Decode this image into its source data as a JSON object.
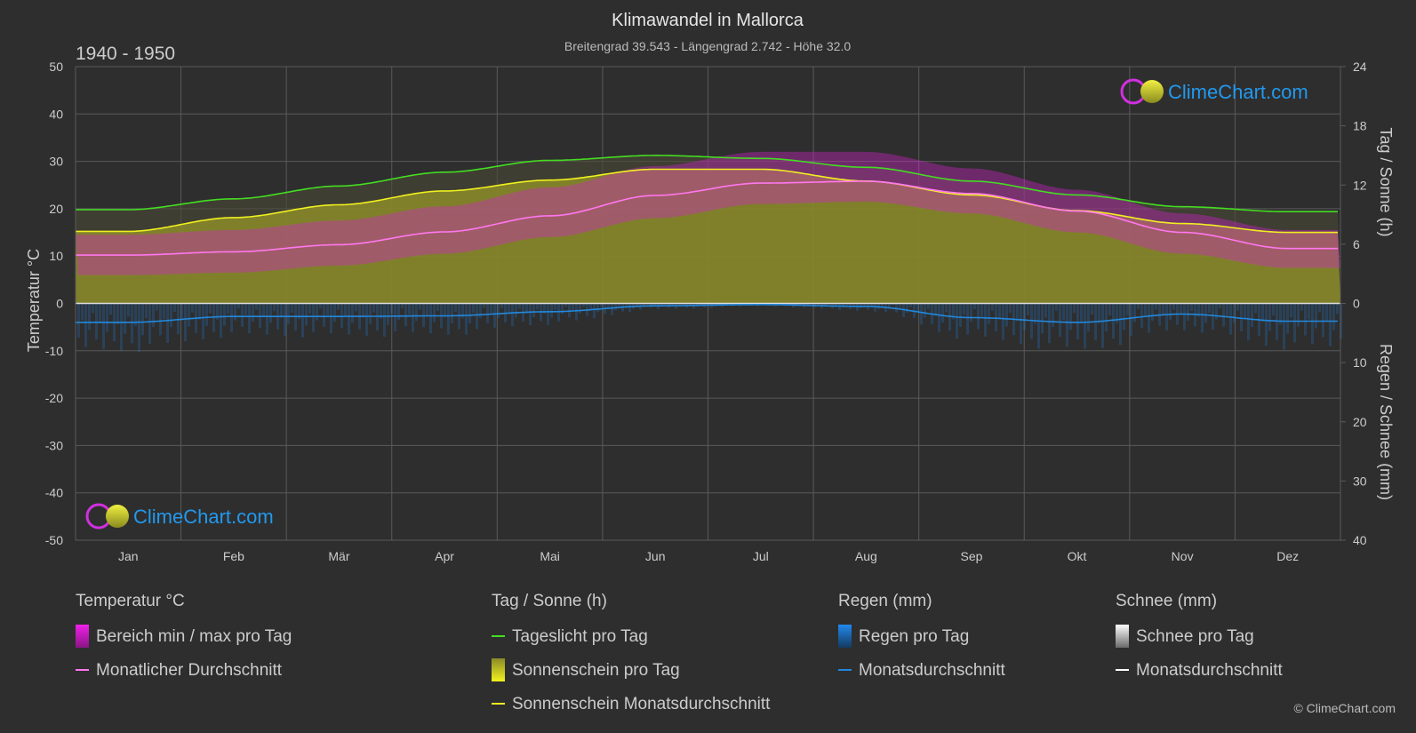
{
  "title": "Klimawandel in Mallorca",
  "subtitle": "Breitengrad 39.543 - Längengrad 2.742 - Höhe 32.0",
  "period": "1940 - 1950",
  "brand": "ClimeChart.com",
  "copyright": "© ClimeChart.com",
  "colors": {
    "background": "#2e2e2e",
    "grid": "#5a5a5a",
    "text": "#cccccc",
    "daylight": "#44dd22",
    "sunshine_fill": "#8c8c2a",
    "sunshine_avg": "#f0f020",
    "temp_range": "#d022c8",
    "temp_avg": "#ff77ee",
    "rain": "#1f78c8",
    "rain_avg": "#2288dd",
    "brand": "#2299ee"
  },
  "chart_data": {
    "type": "line",
    "categories": [
      "Jan",
      "Feb",
      "Mär",
      "Apr",
      "Mai",
      "Jun",
      "Jul",
      "Aug",
      "Sep",
      "Okt",
      "Nov",
      "Dez"
    ],
    "axes": {
      "left": {
        "label": "Temperatur °C",
        "min": -50,
        "max": 50,
        "ticks": [
          "50",
          "40",
          "30",
          "20",
          "10",
          "0",
          "-10",
          "-20",
          "-30",
          "-40",
          "-50"
        ]
      },
      "right_top": {
        "label": "Tag / Sonne (h)",
        "min": 0,
        "max": 24,
        "ticks": [
          "24",
          "18",
          "12",
          "6",
          "0"
        ]
      },
      "right_bottom": {
        "label": "Regen / Schnee (mm)",
        "min": 0,
        "max": 40,
        "ticks": [
          "0",
          "10",
          "20",
          "30",
          "40"
        ]
      }
    },
    "grid": true,
    "series": [
      {
        "name": "Tageslicht pro Tag",
        "unit": "h",
        "values": [
          9.5,
          10.6,
          11.9,
          13.3,
          14.5,
          15.0,
          14.7,
          13.8,
          12.4,
          11.0,
          9.8,
          9.3
        ]
      },
      {
        "name": "Sonnenschein Monatsdurchschnitt",
        "unit": "h",
        "values": [
          7.3,
          8.7,
          10.0,
          11.4,
          12.5,
          13.6,
          13.6,
          12.4,
          11.0,
          9.4,
          8.1,
          7.2
        ]
      },
      {
        "name": "Monatlicher Durchschnitt",
        "unit": "°C",
        "values": [
          10.2,
          10.9,
          12.4,
          15.1,
          18.5,
          22.8,
          25.4,
          25.8,
          23.2,
          19.5,
          15.0,
          11.6
        ]
      },
      {
        "name": "Bereich min / max pro Tag",
        "unit": "°C",
        "min": [
          6.0,
          6.5,
          8.0,
          10.5,
          14.0,
          18.0,
          21.0,
          21.5,
          19.0,
          15.0,
          10.5,
          7.5
        ],
        "max": [
          14.5,
          15.5,
          17.5,
          20.5,
          24.5,
          29.0,
          32.0,
          32.0,
          28.5,
          24.0,
          19.0,
          15.5
        ]
      },
      {
        "name": "Regen Monatsdurchschnitt",
        "unit": "mm",
        "values": [
          3.2,
          2.2,
          2.2,
          2.1,
          1.4,
          0.4,
          0.2,
          0.5,
          2.4,
          3.2,
          1.8,
          3.0
        ]
      }
    ]
  },
  "legend": {
    "groups": [
      {
        "title": "Temperatur °C",
        "items": [
          {
            "label": "Bereich min / max pro Tag",
            "swatch": "magenta-bar"
          },
          {
            "label": "Monatlicher Durchschnitt",
            "swatch": "pink-line"
          }
        ]
      },
      {
        "title": "Tag / Sonne (h)",
        "items": [
          {
            "label": "Tageslicht pro Tag",
            "swatch": "green-line"
          },
          {
            "label": "Sonnenschein pro Tag",
            "swatch": "yellow-bar"
          },
          {
            "label": "Sonnenschein Monatsdurchschnitt",
            "swatch": "yellow-line"
          }
        ]
      },
      {
        "title": "Regen (mm)",
        "items": [
          {
            "label": "Regen pro Tag",
            "swatch": "blue-bar"
          },
          {
            "label": "Monatsdurchschnitt",
            "swatch": "blue-line"
          }
        ]
      },
      {
        "title": "Schnee (mm)",
        "items": [
          {
            "label": "Schnee pro Tag",
            "swatch": "white-bar"
          },
          {
            "label": "Monatsdurchschnitt",
            "swatch": "white-line"
          }
        ]
      }
    ]
  }
}
